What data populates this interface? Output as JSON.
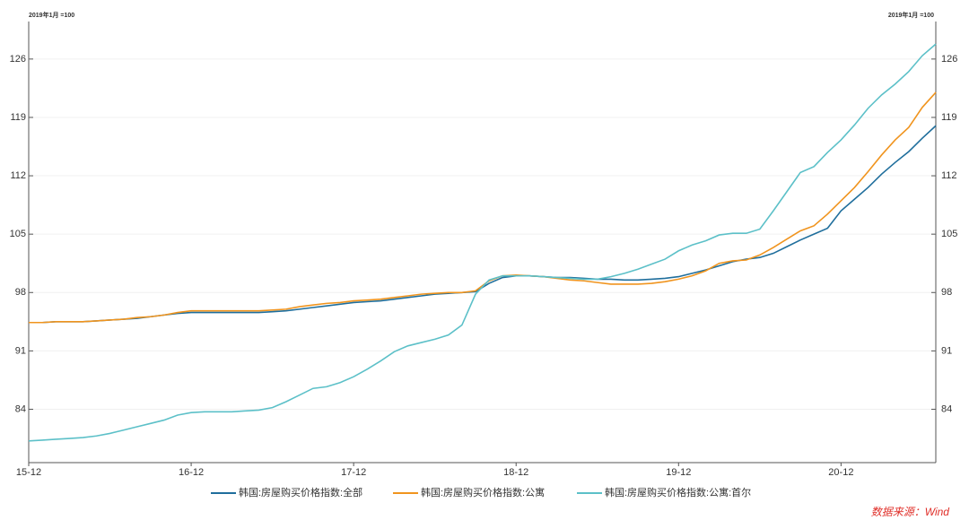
{
  "chart_data": {
    "type": "line",
    "ylabel": "2019年1月 =100",
    "y2label": "2019年1月 =100",
    "source": "数据来源：Wind",
    "categories": [
      "15-12",
      null,
      null,
      null,
      null,
      null,
      null,
      null,
      null,
      null,
      null,
      null,
      "16-12",
      null,
      null,
      null,
      null,
      null,
      null,
      null,
      null,
      null,
      null,
      null,
      "17-12",
      null,
      null,
      null,
      null,
      null,
      null,
      null,
      null,
      null,
      null,
      null,
      "18-12",
      null,
      null,
      null,
      null,
      null,
      null,
      null,
      null,
      null,
      null,
      null,
      "19-12",
      null,
      null,
      null,
      null,
      null,
      null,
      null,
      null,
      null,
      null,
      null,
      "20-12",
      null,
      null,
      null,
      null,
      null,
      null,
      null
    ],
    "series": [
      {
        "name": "韩国:房屋购买价格指数:全部",
        "color": "#1f6e9c",
        "values": [
          94.4,
          94.4,
          94.5,
          94.5,
          94.5,
          94.6,
          94.7,
          94.8,
          94.9,
          95.1,
          95.3,
          95.5,
          95.6,
          95.6,
          95.6,
          95.6,
          95.6,
          95.6,
          95.7,
          95.8,
          96.0,
          96.2,
          96.4,
          96.6,
          96.8,
          96.9,
          97.0,
          97.2,
          97.4,
          97.6,
          97.8,
          97.9,
          98.0,
          98.1,
          99.1,
          99.8,
          100.0,
          100.0,
          99.9,
          99.8,
          99.8,
          99.7,
          99.6,
          99.6,
          99.5,
          99.5,
          99.6,
          99.7,
          99.9,
          100.3,
          100.7,
          101.2,
          101.7,
          102.0,
          102.2,
          102.7,
          103.5,
          104.3,
          105.0,
          105.7,
          107.8,
          109.2,
          110.6,
          112.2,
          113.6,
          114.9,
          116.5,
          118.0
        ]
      },
      {
        "name": "韩国:房屋购买价格指数:公寓",
        "color": "#f0941e",
        "values": [
          94.4,
          94.4,
          94.5,
          94.5,
          94.5,
          94.6,
          94.7,
          94.8,
          95.0,
          95.1,
          95.3,
          95.6,
          95.8,
          95.8,
          95.8,
          95.8,
          95.8,
          95.8,
          95.9,
          96.0,
          96.3,
          96.5,
          96.7,
          96.8,
          97.0,
          97.1,
          97.2,
          97.4,
          97.6,
          97.8,
          97.9,
          98.0,
          98.0,
          98.2,
          99.4,
          100.0,
          100.1,
          100.0,
          99.9,
          99.7,
          99.5,
          99.4,
          99.2,
          99.0,
          99.0,
          99.0,
          99.1,
          99.3,
          99.6,
          100.0,
          100.6,
          101.5,
          101.8,
          101.9,
          102.5,
          103.4,
          104.4,
          105.4,
          106.0,
          107.4,
          109.0,
          110.6,
          112.5,
          114.5,
          116.3,
          117.8,
          120.2,
          122.0
        ]
      },
      {
        "name": "韩国:房屋购买价格指数:公寓:首尔",
        "color": "#5cc0c8",
        "values": [
          80.2,
          80.3,
          80.4,
          80.5,
          80.6,
          80.8,
          81.1,
          81.5,
          81.9,
          82.3,
          82.7,
          83.3,
          83.6,
          83.7,
          83.7,
          83.7,
          83.8,
          83.9,
          84.2,
          84.9,
          85.7,
          86.5,
          86.7,
          87.2,
          87.9,
          88.8,
          89.8,
          90.9,
          91.6,
          92.0,
          92.4,
          92.9,
          94.1,
          97.8,
          99.5,
          100.0,
          100.0,
          100.0,
          99.9,
          99.8,
          99.7,
          99.6,
          99.6,
          99.9,
          100.3,
          100.8,
          101.4,
          102.0,
          103.0,
          103.7,
          104.2,
          104.9,
          105.1,
          105.1,
          105.6,
          107.8,
          110.1,
          112.4,
          113.1,
          114.8,
          116.3,
          118.1,
          120.1,
          121.7,
          123.0,
          124.5,
          126.4,
          127.8
        ]
      }
    ],
    "ylim": [
      77.6,
      130.5
    ],
    "yticks": [
      84,
      91,
      98,
      105,
      112,
      119,
      126
    ],
    "y2lim": [
      77.6,
      130.5
    ],
    "y2ticks": [
      84,
      91,
      98,
      105,
      112,
      119,
      126
    ],
    "grid": true
  }
}
